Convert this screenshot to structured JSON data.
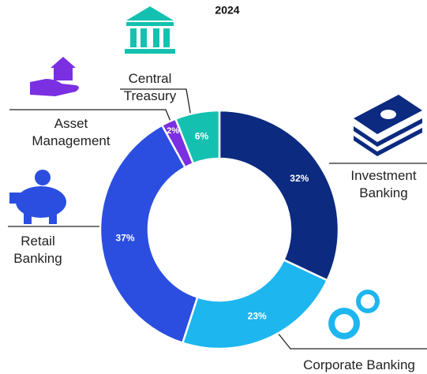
{
  "chart_data": {
    "type": "donut",
    "title": "2024",
    "categories": [
      "Investment Banking",
      "Corporate Banking",
      "Retail Banking",
      "Asset Management",
      "Central Treasury"
    ],
    "values": [
      32,
      23,
      37,
      2,
      6
    ],
    "value_labels": [
      "32%",
      "23%",
      "37%",
      "2%",
      "6%"
    ],
    "colors": [
      "#0b2a80",
      "#1db6ef",
      "#2b4ee0",
      "#7a2fe0",
      "#14c1b0"
    ]
  }
}
